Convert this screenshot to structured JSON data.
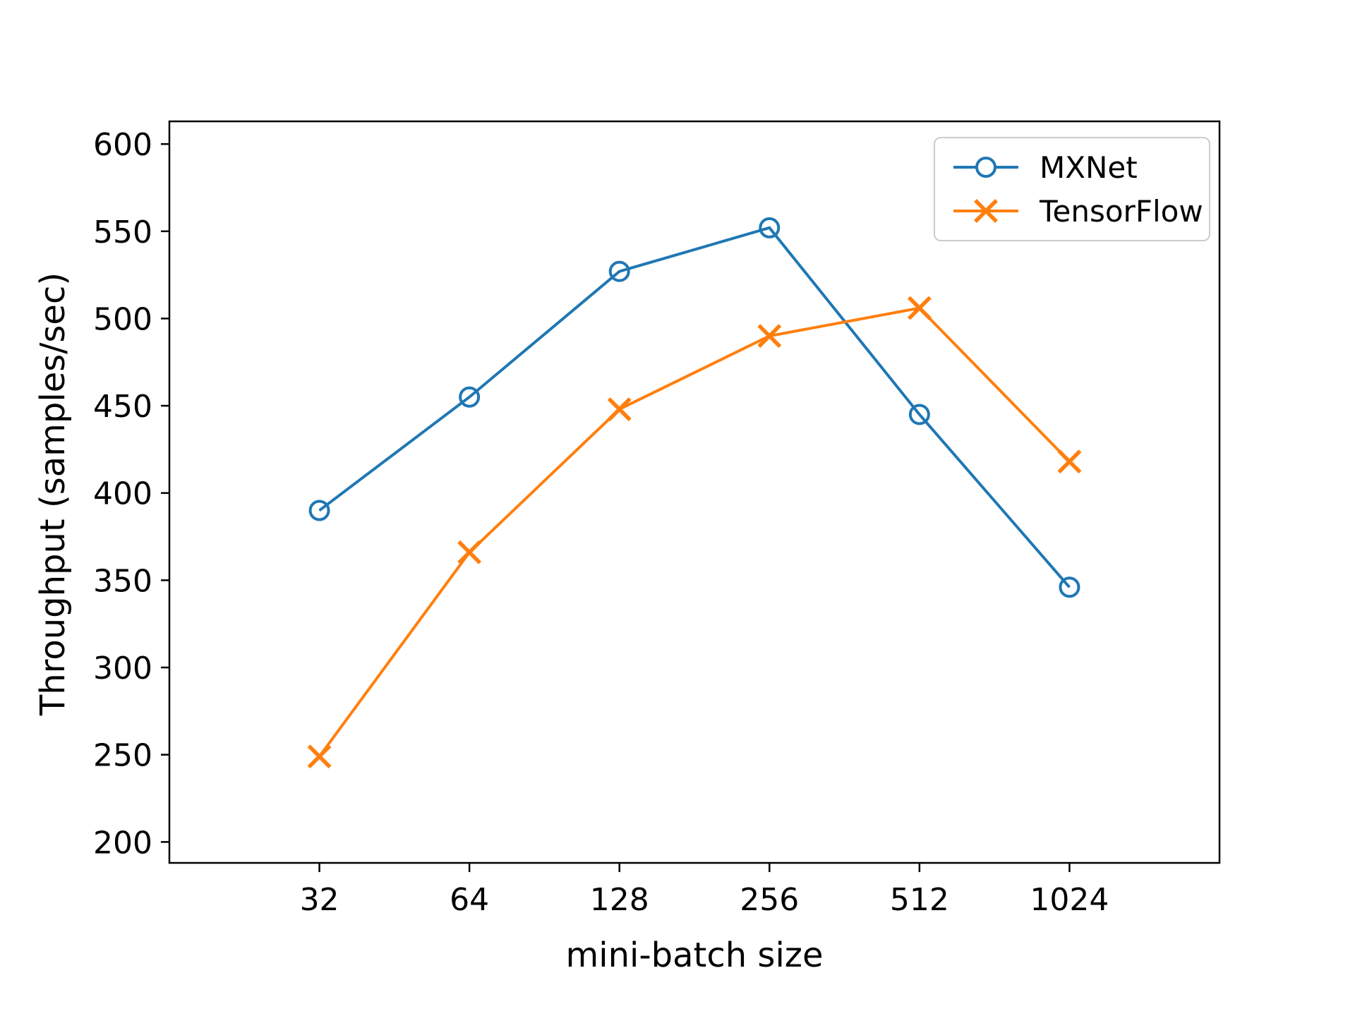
{
  "chart_data": {
    "type": "line",
    "title": "",
    "xlabel": "mini-batch size",
    "ylabel": "Throughput (samples/sec)",
    "categories": [
      "32",
      "64",
      "128",
      "256",
      "512",
      "1024"
    ],
    "series": [
      {
        "name": "MXNet",
        "color": "#1f77b4",
        "marker": "circle",
        "values": [
          390,
          455,
          527,
          552,
          445,
          346
        ]
      },
      {
        "name": "TensorFlow",
        "color": "#ff7f0e",
        "marker": "x",
        "values": [
          249,
          366,
          448,
          490,
          506,
          418
        ]
      }
    ],
    "y_ticks": [
      200,
      250,
      300,
      350,
      400,
      450,
      500,
      550,
      600
    ],
    "ylim": [
      188,
      613
    ],
    "grid": false,
    "legend_position": "upper right",
    "axis_color": "#000000",
    "background_color": "#ffffff"
  }
}
